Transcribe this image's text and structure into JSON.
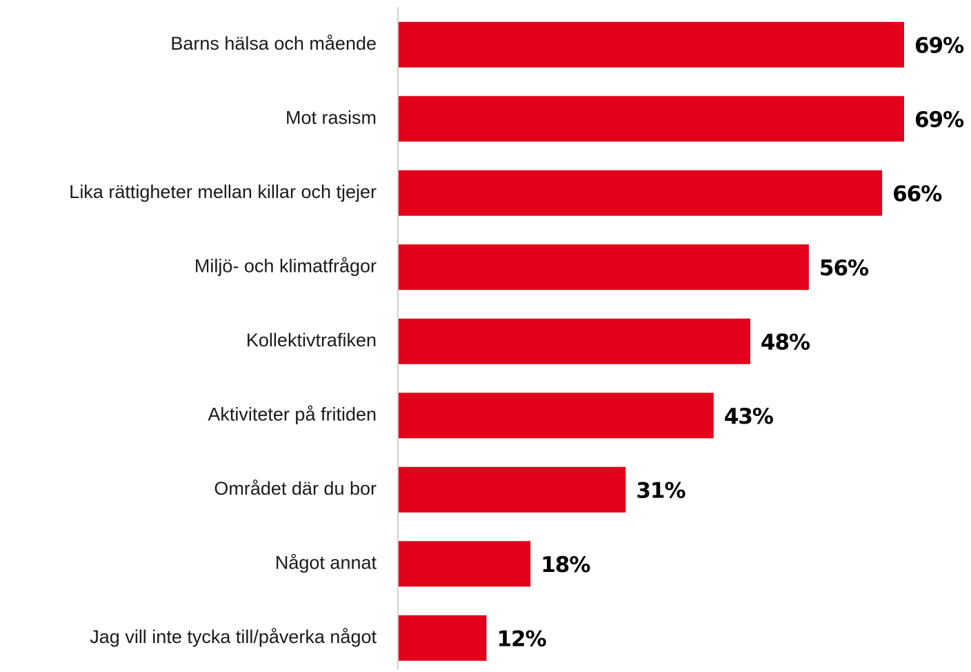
{
  "chart_data": {
    "type": "bar",
    "orientation": "horizontal",
    "categories": [
      "Barns hälsa och mående",
      "Mot rasism",
      "Lika rättigheter mellan killar och tjejer",
      "Miljö- och klimatfrågor",
      "Kollektivtrafiken",
      "Aktiviteter på fritiden",
      "Området där du bor",
      "Något annat",
      "Jag vill inte tycka till/påverka något"
    ],
    "values": [
      69,
      69,
      66,
      56,
      48,
      43,
      31,
      18,
      12
    ],
    "value_labels": [
      "69%",
      "69%",
      "66%",
      "56%",
      "48%",
      "43%",
      "31%",
      "18%",
      "12%"
    ],
    "color": "#e2001a"
  }
}
